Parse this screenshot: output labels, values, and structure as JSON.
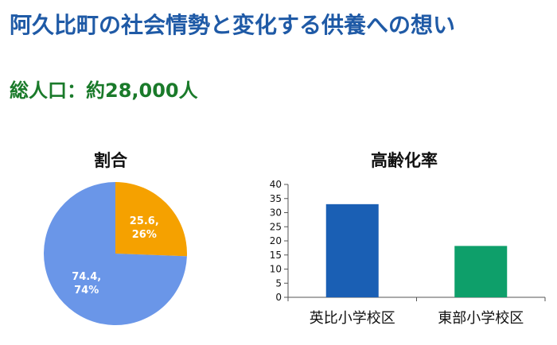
{
  "header": {
    "title": "阿久比町の社会情勢と変化する供養への想い",
    "subtitle": "総人口：約28,000人"
  },
  "chart_data": [
    {
      "type": "pie",
      "title": "割合",
      "slices": [
        {
          "value": 25.6,
          "pct": "26%",
          "color": "#f5a100"
        },
        {
          "value": 74.4,
          "pct": "74%",
          "color": "#6a96e8"
        }
      ]
    },
    {
      "type": "bar",
      "title": "高齢化率",
      "categories": [
        "英比小学校区",
        "東部小学校区"
      ],
      "values": [
        33,
        18.2
      ],
      "colors": [
        "#1a5fb4",
        "#0e9f6a"
      ],
      "ylim": [
        0,
        40
      ],
      "yticks": [
        0,
        5,
        10,
        15,
        20,
        25,
        30,
        35,
        40
      ],
      "grid": false
    }
  ]
}
